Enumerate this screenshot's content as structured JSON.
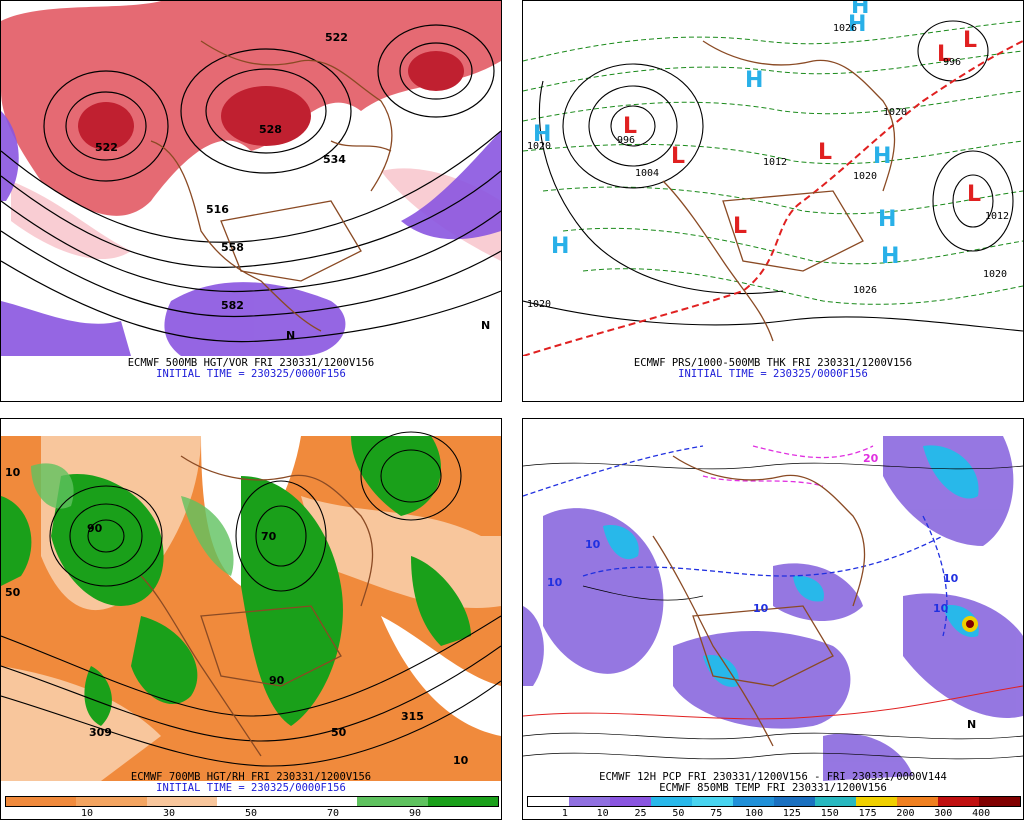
{
  "colors": {
    "vort_red": "#d8303a",
    "vort_purple": "#8a55e0",
    "rh_green": "#1aa01a",
    "rh_orange": "#f08a3c",
    "coast_brown": "#8a4a24",
    "high_cyan": "#29b0e8",
    "low_red": "#e02020",
    "caption_blue": "#1a1ad8"
  },
  "panels": [
    {
      "title": "ECMWF 500MB HGT/VOR FRI 230331/1200V156",
      "subtitle": "INITIAL TIME = 230325/0000F156",
      "labels": [
        "522",
        "528",
        "534",
        "522",
        "558",
        "582",
        "516",
        "N",
        "N"
      ]
    },
    {
      "title": "ECMWF PRS/1000-500MB THK FRI 230331/1200V156",
      "subtitle": "INITIAL TIME = 230325/0000F156",
      "pressure_labels": [
        "1020",
        "1026",
        "996",
        "1004",
        "1012",
        "1020",
        "1026",
        "1020",
        "1012",
        "1020",
        "996",
        "1020"
      ],
      "highs": [
        "H",
        "H",
        "H",
        "H",
        "H",
        "H",
        "H",
        "H"
      ],
      "lows": [
        "L",
        "L",
        "L",
        "L",
        "L",
        "L",
        "L"
      ]
    },
    {
      "title": "ECMWF 700MB HGT/RH FRI 230331/1200V156",
      "subtitle": "INITIAL TIME = 230325/0000F156",
      "labels": [
        "10",
        "50",
        "90",
        "70",
        "309",
        "315",
        "50",
        "90",
        "10"
      ],
      "colorbar": {
        "ticks": [
          "10",
          "30",
          "50",
          "70",
          "90"
        ],
        "colors": [
          "#f08a3c",
          "#f3a460",
          "#f8c69c",
          "#ffffff",
          "#ffffff",
          "#5fc25f",
          "#1aa01a"
        ]
      }
    },
    {
      "title": "ECMWF 12H PCP FRI 230331/1200V156 - FRI 230331/0000V144",
      "subtitle": "ECMWF 850MB TEMP FRI 230331/1200V156",
      "labels": [
        "10",
        "10",
        "10",
        "20",
        "10",
        "10",
        "N"
      ],
      "colorbar": {
        "ticks": [
          "1",
          "10",
          "25",
          "50",
          "75",
          "100",
          "125",
          "150",
          "175",
          "200",
          "300",
          "400"
        ],
        "colors": [
          "#ffffff",
          "#9070e0",
          "#8a55e0",
          "#28b8ea",
          "#48d4f0",
          "#2090d8",
          "#1a70c0",
          "#28b8c0",
          "#f0d000",
          "#f08020",
          "#c01010",
          "#800000"
        ]
      }
    }
  ]
}
